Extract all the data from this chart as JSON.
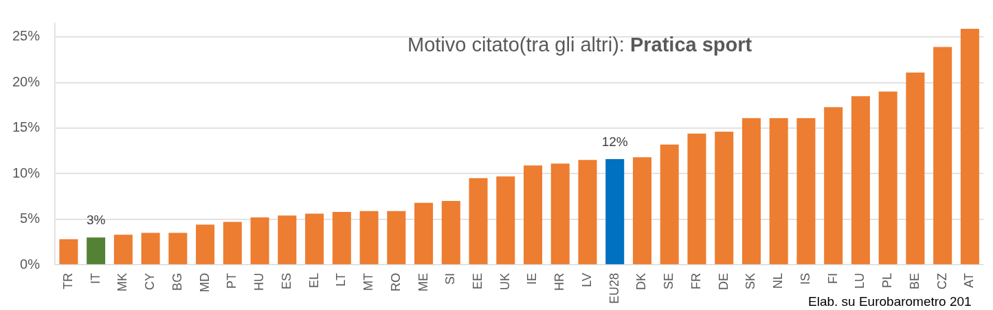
{
  "chart_data": {
    "type": "bar",
    "title": "Motivo citato(tra gli altri):",
    "subtitle": "Pratica sport",
    "categories": [
      "TR",
      "IT",
      "MK",
      "CY",
      "BG",
      "MD",
      "PT",
      "HU",
      "ES",
      "EL",
      "LT",
      "MT",
      "RO",
      "ME",
      "SI",
      "EE",
      "UK",
      "IE",
      "HR",
      "LV",
      "EU28",
      "DK",
      "SE",
      "FR",
      "DE",
      "SK",
      "NL",
      "IS",
      "FI",
      "LU",
      "PL",
      "BE",
      "CZ",
      "AT"
    ],
    "values": [
      2.8,
      3.0,
      3.3,
      3.5,
      3.5,
      4.4,
      4.7,
      5.2,
      5.4,
      5.6,
      5.8,
      5.9,
      5.9,
      6.8,
      7.0,
      9.5,
      9.7,
      10.9,
      11.1,
      11.5,
      11.6,
      11.8,
      13.2,
      14.4,
      14.6,
      16.1,
      16.1,
      16.1,
      17.3,
      18.5,
      19.0,
      21.1,
      23.9,
      25.9
    ],
    "colors": [
      "#ed7d31",
      "#548235",
      "#ed7d31",
      "#ed7d31",
      "#ed7d31",
      "#ed7d31",
      "#ed7d31",
      "#ed7d31",
      "#ed7d31",
      "#ed7d31",
      "#ed7d31",
      "#ed7d31",
      "#ed7d31",
      "#ed7d31",
      "#ed7d31",
      "#ed7d31",
      "#ed7d31",
      "#ed7d31",
      "#ed7d31",
      "#ed7d31",
      "#0070c0",
      "#ed7d31",
      "#ed7d31",
      "#ed7d31",
      "#ed7d31",
      "#ed7d31",
      "#ed7d31",
      "#ed7d31",
      "#ed7d31",
      "#ed7d31",
      "#ed7d31",
      "#ed7d31",
      "#ed7d31",
      "#ed7d31"
    ],
    "value_labels": [
      null,
      "3%",
      null,
      null,
      null,
      null,
      null,
      null,
      null,
      null,
      null,
      null,
      null,
      null,
      null,
      null,
      null,
      null,
      null,
      null,
      "12%",
      null,
      null,
      null,
      null,
      null,
      null,
      null,
      null,
      null,
      null,
      null,
      null,
      null
    ],
    "ylim": [
      0,
      26.5
    ],
    "yticks": [
      {
        "value": 0,
        "label": "0%"
      },
      {
        "value": 5,
        "label": "5%"
      },
      {
        "value": 10,
        "label": "10%"
      },
      {
        "value": 15,
        "label": "15%"
      },
      {
        "value": 20,
        "label": "20%"
      },
      {
        "value": 25,
        "label": "25%"
      }
    ],
    "grid": "y",
    "legend": false,
    "annotations": [
      "Elab. su Eurobarometro 201"
    ]
  }
}
